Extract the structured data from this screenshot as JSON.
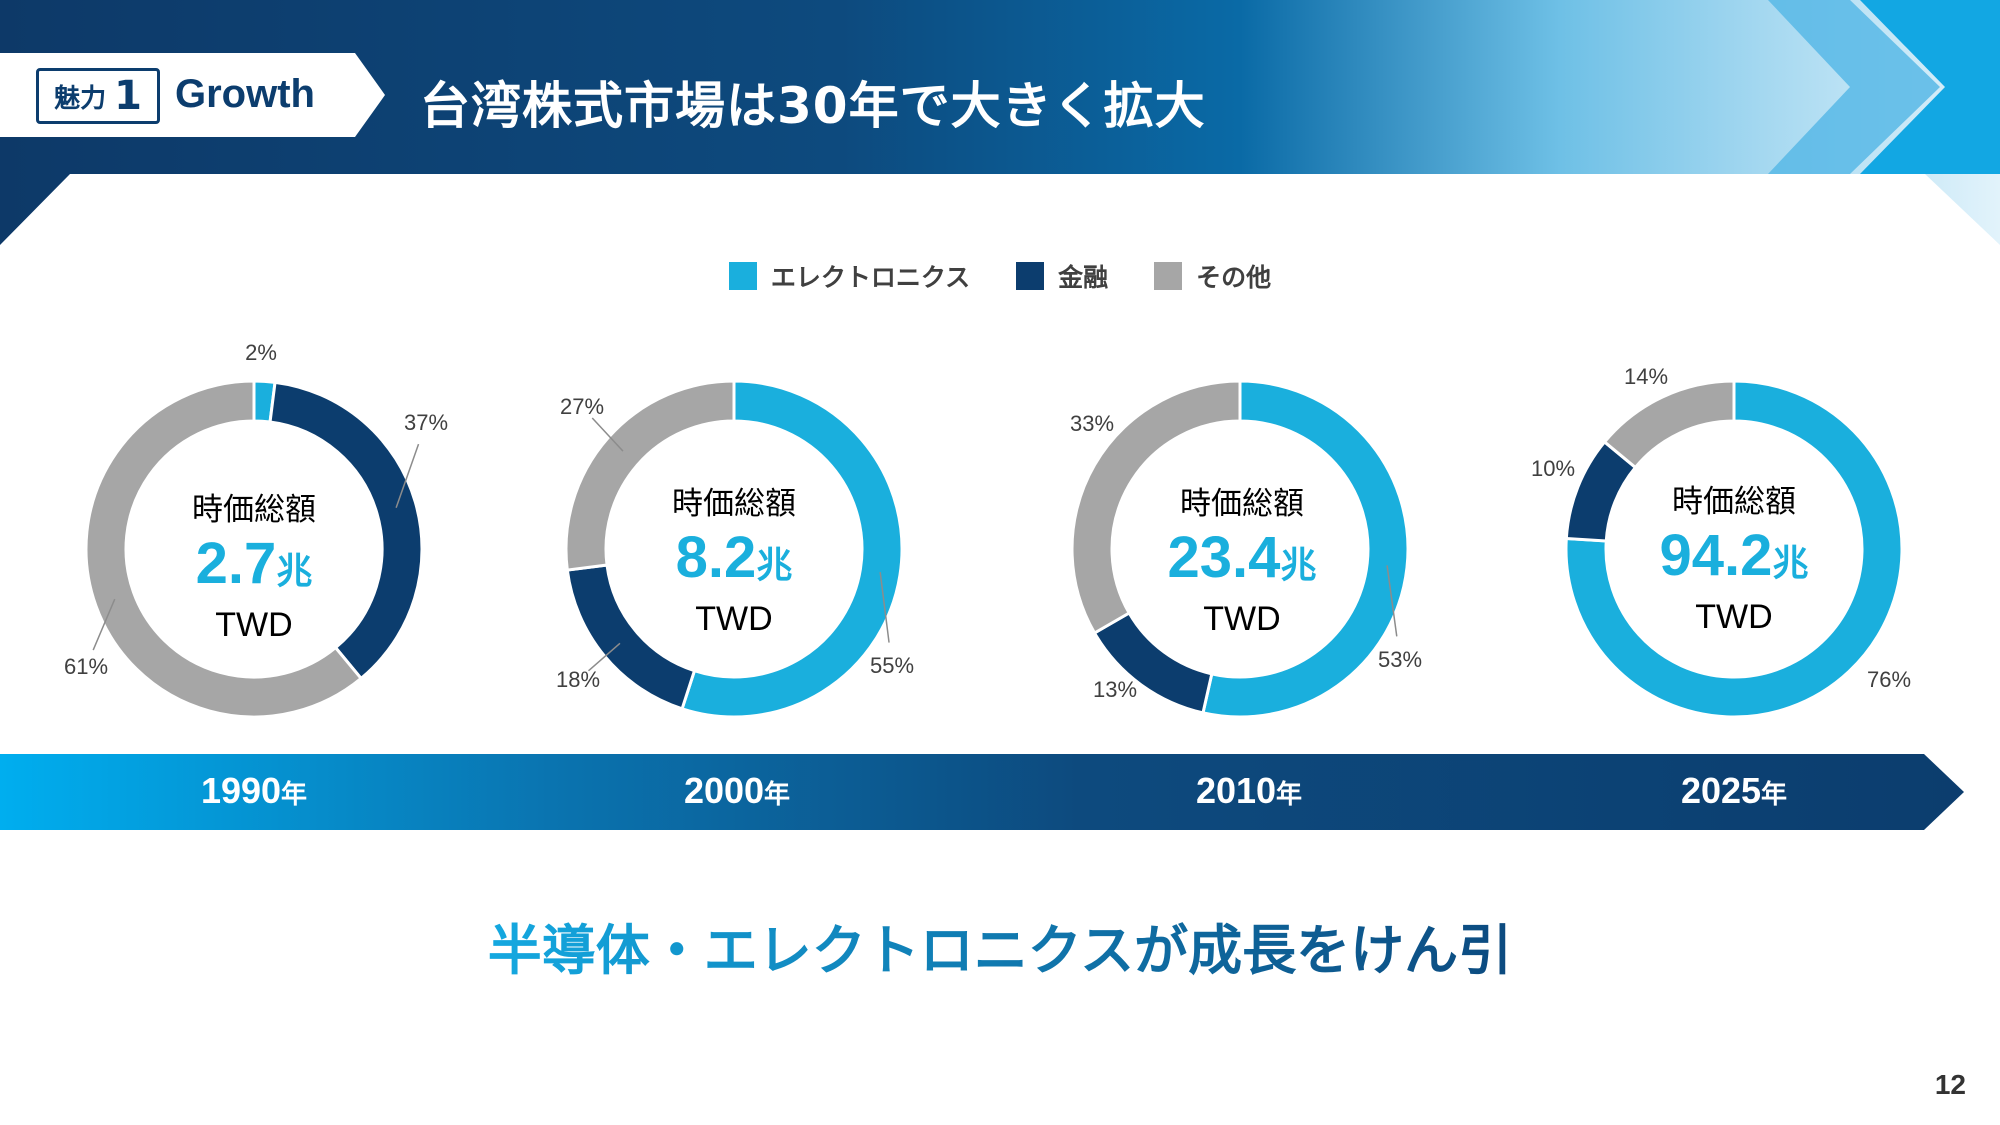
{
  "header": {
    "badge_word": "魅力",
    "badge_number": "1",
    "badge_label": "Growth",
    "title": "台湾株式市場は30年で大きく拡大"
  },
  "legend": [
    {
      "label": "エレクトロニクス",
      "color": "#1aafdd"
    },
    {
      "label": "金融",
      "color": "#0c3d6e"
    },
    {
      "label": "その他",
      "color": "#a6a6a6"
    }
  ],
  "chart_data": {
    "type": "pie",
    "variant": "donut",
    "series_names": [
      "エレクトロニクス",
      "金融",
      "その他"
    ],
    "colors": [
      "#1aafdd",
      "#0c3d6e",
      "#a6a6a6"
    ],
    "charts": [
      {
        "year": "1990",
        "center_title": "時価総額",
        "center_value": "2.7",
        "center_value_unit": "兆",
        "center_unit": "TWD",
        "values": [
          2,
          37,
          61
        ],
        "labels": [
          "2%",
          "37%",
          "61%"
        ]
      },
      {
        "year": "2000",
        "center_title": "時価総額",
        "center_value": "8.2",
        "center_value_unit": "兆",
        "center_unit": "TWD",
        "values": [
          55,
          18,
          27
        ],
        "labels": [
          "55%",
          "18%",
          "27%"
        ]
      },
      {
        "year": "2010",
        "center_title": "時価総額",
        "center_value": "23.4",
        "center_value_unit": "兆",
        "center_unit": "TWD",
        "values": [
          53,
          13,
          33
        ],
        "labels": [
          "53%",
          "13%",
          "33%"
        ]
      },
      {
        "year": "2025",
        "center_title": "時価総額",
        "center_value": "94.2",
        "center_value_unit": "兆",
        "center_unit": "TWD",
        "values": [
          76,
          10,
          14
        ],
        "labels": [
          "76%",
          "10%",
          "14%"
        ]
      }
    ]
  },
  "timeline": {
    "years": [
      "1990",
      "2000",
      "2010",
      "2025"
    ],
    "suffix": "年"
  },
  "tagline": "半導体・エレクトロニクスが成長をけん引",
  "page_number": "12"
}
